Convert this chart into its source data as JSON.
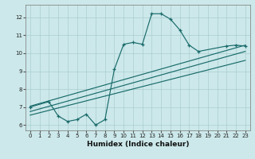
{
  "xlabel": "Humidex (Indice chaleur)",
  "bg_color": "#cce8ea",
  "grid_color": "#aacdd0",
  "line_color": "#1a6b6b",
  "xlim": [
    -0.5,
    23.5
  ],
  "ylim": [
    5.7,
    12.7
  ],
  "yticks": [
    6,
    7,
    8,
    9,
    10,
    11,
    12
  ],
  "xticks": [
    0,
    1,
    2,
    3,
    4,
    5,
    6,
    7,
    8,
    9,
    10,
    11,
    12,
    13,
    14,
    15,
    16,
    17,
    18,
    19,
    20,
    21,
    22,
    23
  ],
  "main_curve_x": [
    0,
    2,
    3,
    4,
    5,
    6,
    7,
    8,
    9,
    10,
    11,
    12,
    13,
    14,
    15,
    16,
    17,
    18,
    21,
    22,
    23
  ],
  "main_curve_y": [
    7.0,
    7.3,
    6.5,
    6.2,
    6.3,
    6.6,
    6.0,
    6.3,
    9.1,
    10.5,
    10.6,
    10.5,
    12.2,
    12.2,
    11.9,
    11.3,
    10.45,
    10.1,
    10.4,
    10.45,
    10.4
  ],
  "line1_x": [
    0,
    23
  ],
  "line1_y": [
    7.05,
    10.45
  ],
  "line2_x": [
    0,
    23
  ],
  "line2_y": [
    6.75,
    10.1
  ],
  "line3_x": [
    0,
    23
  ],
  "line3_y": [
    6.55,
    9.6
  ]
}
